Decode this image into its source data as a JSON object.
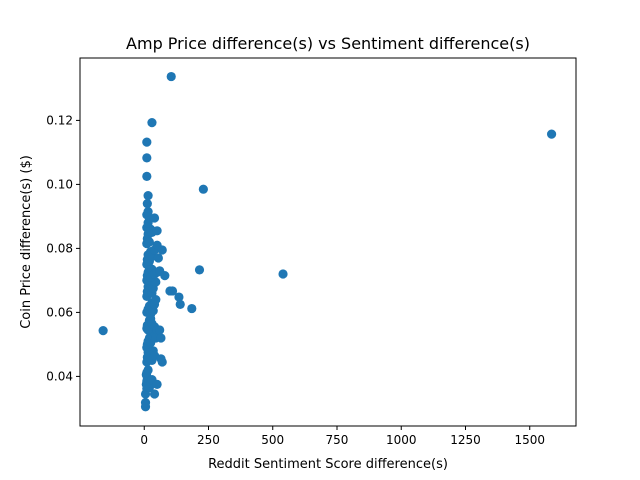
{
  "chart_data": {
    "type": "scatter",
    "title": "Amp Price difference(s) vs Sentiment difference(s)",
    "xlabel": "Reddit Sentiment Score difference(s)",
    "ylabel": "Coin Price difference(s) ($)",
    "xlim": [
      -250,
      1680
    ],
    "ylim": [
      0.0245,
      0.1395
    ],
    "xticks": [
      0,
      250,
      500,
      750,
      1000,
      1250,
      1500
    ],
    "yticks": [
      0.04,
      0.06,
      0.08,
      0.1,
      0.12
    ],
    "ytick_labels": [
      "0.04",
      "0.06",
      "0.08",
      "0.10",
      "0.12"
    ],
    "grid": false,
    "color": "#1f77b4",
    "series": [
      {
        "points": [
          [
            -160,
            0.0543
          ],
          [
            5,
            0.0305
          ],
          [
            5,
            0.0318
          ],
          [
            5,
            0.0345
          ],
          [
            10,
            0.0362
          ],
          [
            8,
            0.0375
          ],
          [
            10,
            0.0385
          ],
          [
            12,
            0.0395
          ],
          [
            8,
            0.0405
          ],
          [
            10,
            0.0412
          ],
          [
            15,
            0.042
          ],
          [
            20,
            0.0365
          ],
          [
            25,
            0.038
          ],
          [
            30,
            0.039
          ],
          [
            40,
            0.0345
          ],
          [
            50,
            0.0375
          ],
          [
            10,
            0.0445
          ],
          [
            12,
            0.046
          ],
          [
            15,
            0.0475
          ],
          [
            20,
            0.047
          ],
          [
            25,
            0.0455
          ],
          [
            30,
            0.045
          ],
          [
            35,
            0.048
          ],
          [
            40,
            0.0465
          ],
          [
            10,
            0.049
          ],
          [
            12,
            0.05
          ],
          [
            15,
            0.051
          ],
          [
            20,
            0.052
          ],
          [
            25,
            0.0505
          ],
          [
            30,
            0.053
          ],
          [
            35,
            0.054
          ],
          [
            45,
            0.052
          ],
          [
            10,
            0.055
          ],
          [
            12,
            0.056
          ],
          [
            15,
            0.0545
          ],
          [
            20,
            0.0575
          ],
          [
            25,
            0.058
          ],
          [
            30,
            0.0565
          ],
          [
            40,
            0.0555
          ],
          [
            50,
            0.0545
          ],
          [
            60,
            0.0545
          ],
          [
            65,
            0.052
          ],
          [
            70,
            0.0445
          ],
          [
            65,
            0.0455
          ],
          [
            10,
            0.06
          ],
          [
            15,
            0.061
          ],
          [
            20,
            0.062
          ],
          [
            25,
            0.0595
          ],
          [
            30,
            0.063
          ],
          [
            35,
            0.0605
          ],
          [
            40,
            0.0625
          ],
          [
            45,
            0.064
          ],
          [
            10,
            0.065
          ],
          [
            12,
            0.0665
          ],
          [
            15,
            0.068
          ],
          [
            20,
            0.067
          ],
          [
            25,
            0.069
          ],
          [
            30,
            0.066
          ],
          [
            35,
            0.0675
          ],
          [
            45,
            0.0695
          ],
          [
            10,
            0.07
          ],
          [
            12,
            0.0715
          ],
          [
            15,
            0.0725
          ],
          [
            20,
            0.074
          ],
          [
            25,
            0.071
          ],
          [
            30,
            0.0735
          ],
          [
            40,
            0.072
          ],
          [
            50,
            0.0725
          ],
          [
            60,
            0.073
          ],
          [
            80,
            0.0715
          ],
          [
            10,
            0.075
          ],
          [
            12,
            0.0765
          ],
          [
            15,
            0.078
          ],
          [
            20,
            0.076
          ],
          [
            25,
            0.079
          ],
          [
            30,
            0.0775
          ],
          [
            40,
            0.0795
          ],
          [
            50,
            0.081
          ],
          [
            55,
            0.077
          ],
          [
            70,
            0.0795
          ],
          [
            10,
            0.0815
          ],
          [
            12,
            0.083
          ],
          [
            15,
            0.0845
          ],
          [
            20,
            0.082
          ],
          [
            25,
            0.086
          ],
          [
            30,
            0.085
          ],
          [
            10,
            0.0865
          ],
          [
            15,
            0.088
          ],
          [
            20,
            0.0895
          ],
          [
            40,
            0.0895
          ],
          [
            50,
            0.0855
          ],
          [
            10,
            0.0905
          ],
          [
            15,
            0.0915
          ],
          [
            12,
            0.094
          ],
          [
            15,
            0.0965
          ],
          [
            10,
            0.1025
          ],
          [
            10,
            0.1083
          ],
          [
            10,
            0.1132
          ],
          [
            30,
            0.1193
          ],
          [
            105,
            0.1337
          ],
          [
            100,
            0.0667
          ],
          [
            110,
            0.0667
          ],
          [
            135,
            0.0648
          ],
          [
            140,
            0.0625
          ],
          [
            185,
            0.0612
          ],
          [
            215,
            0.0733
          ],
          [
            230,
            0.0985
          ],
          [
            540,
            0.072
          ],
          [
            1585,
            0.1157
          ]
        ]
      }
    ]
  }
}
